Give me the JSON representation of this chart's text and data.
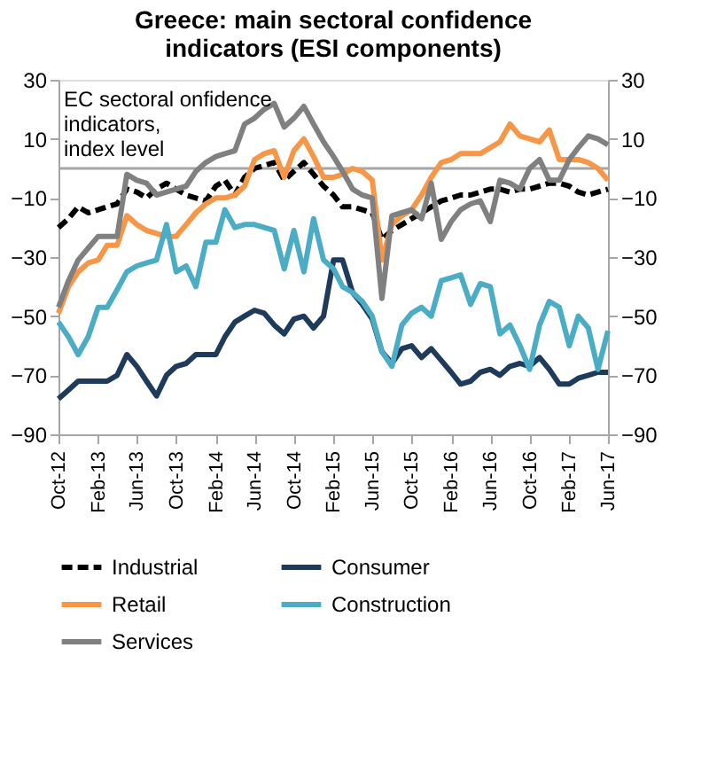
{
  "chart_data": {
    "type": "line",
    "title": "Greece: main sectoral confidence\nindicators (ESI components)",
    "x": [
      "2012-10",
      "2012-11",
      "2012-12",
      "2013-01",
      "2013-02",
      "2013-03",
      "2013-04",
      "2013-05",
      "2013-06",
      "2013-07",
      "2013-08",
      "2013-09",
      "2013-10",
      "2013-11",
      "2013-12",
      "2014-01",
      "2014-02",
      "2014-03",
      "2014-04",
      "2014-05",
      "2014-06",
      "2014-07",
      "2014-08",
      "2014-09",
      "2014-10",
      "2014-11",
      "2014-12",
      "2015-01",
      "2015-02",
      "2015-03",
      "2015-04",
      "2015-05",
      "2015-06",
      "2015-07",
      "2015-08",
      "2015-09",
      "2015-10",
      "2015-11",
      "2015-12",
      "2016-01",
      "2016-02",
      "2016-03",
      "2016-04",
      "2016-05",
      "2016-06",
      "2016-07",
      "2016-08",
      "2016-09",
      "2016-10",
      "2016-11",
      "2016-12",
      "2017-01",
      "2017-02",
      "2017-03",
      "2017-04",
      "2017-05",
      "2017-06"
    ],
    "series": [
      {
        "name": "Industrial",
        "color": "#000000",
        "line_style": "dashed",
        "values": [
          -20,
          -17,
          -13,
          -15,
          -14,
          -13,
          -12,
          -7,
          -8,
          -10,
          -7,
          -5,
          -7,
          -9,
          -10,
          -11,
          -6,
          -4,
          -9,
          -3,
          0,
          1,
          2,
          -4,
          -1,
          2,
          -2,
          -6,
          -9,
          -13,
          -13,
          -14,
          -15,
          -24,
          -21,
          -19,
          -17,
          -15,
          -13,
          -11,
          -10,
          -9,
          -9,
          -8,
          -7,
          -7,
          -8,
          -7,
          -7,
          -6,
          -5,
          -5,
          -6,
          -8,
          -9,
          -8,
          -7
        ]
      },
      {
        "name": "Consumer",
        "color": "#1f3b5c",
        "line_style": "solid",
        "values": [
          -78,
          -75,
          -72,
          -72,
          -72,
          -72,
          -70,
          -63,
          -67,
          -72,
          -77,
          -70,
          -67,
          -66,
          -63,
          -63,
          -63,
          -57,
          -52,
          -50,
          -48,
          -49,
          -53,
          -56,
          -51,
          -50,
          -54,
          -50,
          -31,
          -31,
          -42,
          -46,
          -51,
          -62,
          -66,
          -61,
          -60,
          -64,
          -61,
          -65,
          -69,
          -73,
          -72,
          -69,
          -68,
          -70,
          -67,
          -66,
          -67,
          -64,
          -68,
          -73,
          -73,
          -71,
          -70,
          -69,
          -69
        ]
      },
      {
        "name": "Retail",
        "color": "#f79646",
        "line_style": "solid",
        "values": [
          -49,
          -40,
          -35,
          -32,
          -31,
          -26,
          -26,
          -16,
          -19,
          -21,
          -22,
          -23,
          -23,
          -19,
          -15,
          -12,
          -10,
          -10,
          -9,
          -6,
          3,
          5,
          6,
          -3,
          6,
          10,
          4,
          -3,
          -3,
          -2,
          0,
          -1,
          -4,
          -31,
          -19,
          -16,
          -14,
          -9,
          -3,
          2,
          3,
          5,
          5,
          5,
          7,
          9,
          15,
          11,
          10,
          9,
          13,
          3,
          3,
          3,
          2,
          0,
          -4
        ]
      },
      {
        "name": "Construction",
        "color": "#4bacc6",
        "line_style": "solid",
        "values": [
          -52,
          -57,
          -63,
          -57,
          -47,
          -47,
          -41,
          -35,
          -33,
          -32,
          -31,
          -19,
          -35,
          -33,
          -40,
          -25,
          -25,
          -14,
          -20,
          -19,
          -19,
          -20,
          -21,
          -34,
          -21,
          -35,
          -17,
          -31,
          -34,
          -40,
          -42,
          -45,
          -50,
          -62,
          -67,
          -53,
          -49,
          -47,
          -50,
          -38,
          -37,
          -36,
          -46,
          -39,
          -40,
          -56,
          -53,
          -60,
          -68,
          -53,
          -45,
          -47,
          -60,
          -50,
          -54,
          -68,
          -55
        ]
      },
      {
        "name": "Services",
        "color": "#808080",
        "line_style": "solid",
        "values": [
          -47,
          -38,
          -31,
          -27,
          -23,
          -23,
          -23,
          -2,
          -4,
          -5,
          -9,
          -8,
          -7,
          -6,
          -1,
          2,
          4,
          5,
          6,
          15,
          17,
          20,
          22,
          14,
          17,
          21,
          15,
          9,
          4,
          -1,
          -7,
          -9,
          -10,
          -44,
          -16,
          -15,
          -14,
          -17,
          -5,
          -24,
          -18,
          -14,
          -12,
          -11,
          -18,
          -4,
          -5,
          -7,
          0,
          3,
          -4,
          -4,
          3,
          7,
          11,
          10,
          8
        ]
      }
    ],
    "xlim": [
      "2012-10",
      "2017-06"
    ],
    "xticks": [
      {
        "value": "2012-10",
        "label": "Oct-12"
      },
      {
        "value": "2013-02",
        "label": "Feb-13"
      },
      {
        "value": "2013-06",
        "label": "Jun-13"
      },
      {
        "value": "2013-10",
        "label": "Oct-13"
      },
      {
        "value": "2014-02",
        "label": "Feb-14"
      },
      {
        "value": "2014-06",
        "label": "Jun-14"
      },
      {
        "value": "2014-10",
        "label": "Oct-14"
      },
      {
        "value": "2015-02",
        "label": "Feb-15"
      },
      {
        "value": "2015-06",
        "label": "Jun-15"
      },
      {
        "value": "2015-10",
        "label": "Oct-15"
      },
      {
        "value": "2016-02",
        "label": "Feb-16"
      },
      {
        "value": "2016-06",
        "label": "Jun-16"
      },
      {
        "value": "2016-10",
        "label": "Oct-16"
      },
      {
        "value": "2017-02",
        "label": "Feb-17"
      },
      {
        "value": "2017-06",
        "label": "Jun-17"
      }
    ],
    "ylim": [
      -90,
      30
    ],
    "yticks": [
      -90,
      -70,
      -50,
      -30,
      -10,
      10,
      30
    ],
    "y2lim": [
      -90,
      30
    ],
    "y2ticks": [
      -90,
      -70,
      -50,
      -30,
      -10,
      10,
      30
    ],
    "ref_lines": [
      {
        "axis": "y",
        "value": 0,
        "color": "#a6a6a6"
      }
    ],
    "annotations": [
      "EC sectoral onfidence\nindicators,\n index level"
    ],
    "grid": false,
    "legend": "bottom",
    "marker": "none"
  }
}
